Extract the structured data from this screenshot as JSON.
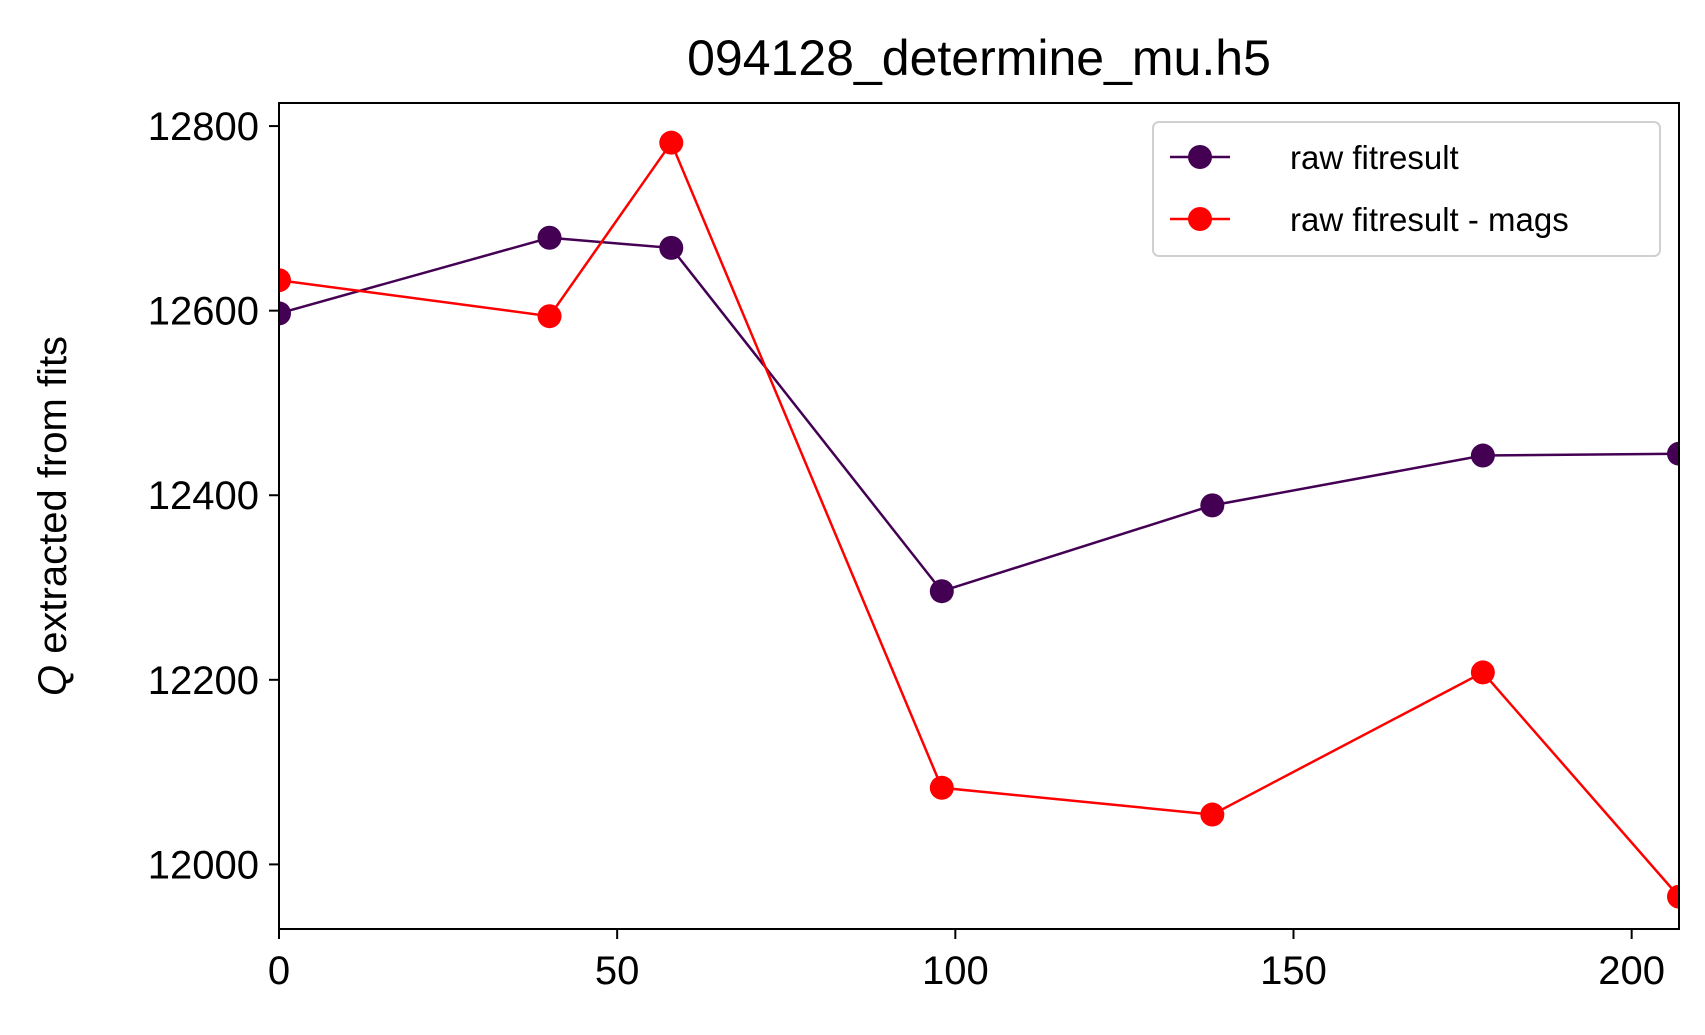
{
  "chart_data": {
    "type": "line",
    "title": "094128_determine_mu.h5",
    "xlabel": "",
    "ylabel_symbol": "Q",
    "ylabel": " extracted from fits",
    "xlim": [
      0,
      207
    ],
    "ylim": [
      11930,
      12825
    ],
    "xticks": [
      0,
      50,
      100,
      150,
      200
    ],
    "yticks": [
      12000,
      12200,
      12400,
      12600,
      12800
    ],
    "grid": false,
    "legend_position": "top-right",
    "series": [
      {
        "name": "raw fitresult",
        "color": "#440154",
        "x": [
          0,
          40,
          58,
          98,
          138,
          178,
          207
        ],
        "y": [
          12597,
          12679,
          12668,
          12296,
          12389,
          12443,
          12445
        ]
      },
      {
        "name": "raw fitresult - mags",
        "color": "#ff0000",
        "x": [
          0,
          40,
          58,
          98,
          138,
          178,
          207
        ],
        "y": [
          12633,
          12594,
          12782,
          12083,
          12054,
          12208,
          11965
        ]
      }
    ]
  }
}
